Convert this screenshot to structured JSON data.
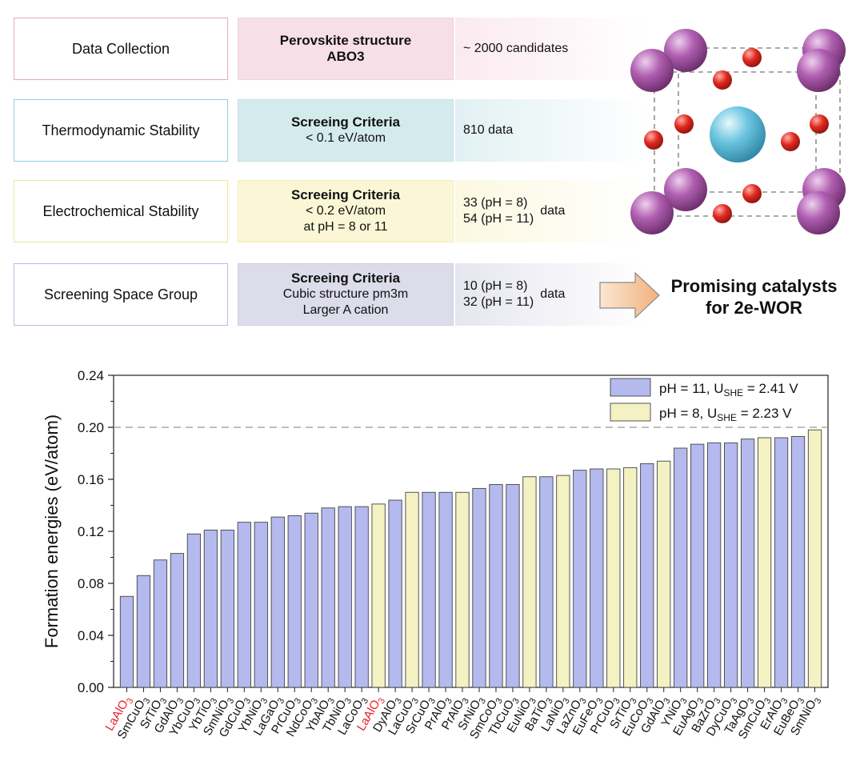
{
  "pipeline": {
    "rows": [
      {
        "step": "Data Collection",
        "criteria_title": "Perovskite structure",
        "criteria_lines": [
          "ABO3"
        ],
        "result_lines": [
          "~ 2000 candidates"
        ],
        "result_suffix": ""
      },
      {
        "step": "Thermodynamic Stability",
        "criteria_title": "Screeing Criteria",
        "criteria_lines": [
          "< 0.1 eV/atom"
        ],
        "result_lines": [
          "810 data"
        ],
        "result_suffix": ""
      },
      {
        "step": "Electrochemical Stability",
        "criteria_title": "Screeing Criteria",
        "criteria_lines": [
          "< 0.2 eV/atom",
          "at pH = 8 or 11"
        ],
        "result_lines": [
          "33 (pH = 8)",
          "54 (pH = 11)"
        ],
        "result_suffix": "data"
      },
      {
        "step": "Screening Space Group",
        "criteria_title": "Screeing Criteria",
        "criteria_lines": [
          "Cubic structure pm3m",
          "Larger A cation"
        ],
        "result_lines": [
          "10 (pH = 8)",
          "32 (pH = 11)"
        ],
        "result_suffix": "data"
      }
    ],
    "outcome_line1": "Promising catalysts",
    "outcome_line2": "for 2e-WOR"
  },
  "colors": {
    "ph11": "#b4b9ee",
    "ph8": "#f4f1c2",
    "highlight_label": "#e8222a",
    "a_site": "#b05fb0",
    "b_site": "#6cc5e0",
    "oxygen": "#e0281e"
  },
  "chart_data": {
    "type": "bar",
    "ylabel": "Formation energies (eV/atom)",
    "ylim": [
      0.0,
      0.24
    ],
    "yticks": [
      "0.00",
      "0.04",
      "0.08",
      "0.12",
      "0.16",
      "0.20",
      "0.24"
    ],
    "reference_line": 0.2,
    "legend": [
      {
        "series": "pH11",
        "label_main": "pH = 11, U",
        "label_sub": "SHE",
        "label_tail": " = 2.41 V"
      },
      {
        "series": "pH8",
        "label_main": "pH = 8, U",
        "label_sub": "SHE",
        "label_tail": " = 2.23 V"
      }
    ],
    "bars": [
      {
        "base": "LaAlO",
        "sub": "3",
        "value": 0.07,
        "series": "pH11",
        "highlight": true
      },
      {
        "base": "SmCuO",
        "sub": "3",
        "value": 0.086,
        "series": "pH11",
        "highlight": false
      },
      {
        "base": "SrTiO",
        "sub": "3",
        "value": 0.098,
        "series": "pH11",
        "highlight": false
      },
      {
        "base": "GdAlO",
        "sub": "3",
        "value": 0.103,
        "series": "pH11",
        "highlight": false
      },
      {
        "base": "YbCuO",
        "sub": "3",
        "value": 0.118,
        "series": "pH11",
        "highlight": false
      },
      {
        "base": "YbTiO",
        "sub": "3",
        "value": 0.121,
        "series": "pH11",
        "highlight": false
      },
      {
        "base": "SmNiO",
        "sub": "3",
        "value": 0.121,
        "series": "pH11",
        "highlight": false
      },
      {
        "base": "GdCuO",
        "sub": "3",
        "value": 0.127,
        "series": "pH11",
        "highlight": false
      },
      {
        "base": "YbNiO",
        "sub": "3",
        "value": 0.127,
        "series": "pH11",
        "highlight": false
      },
      {
        "base": "LaGaO",
        "sub": "3",
        "value": 0.131,
        "series": "pH11",
        "highlight": false
      },
      {
        "base": "PrCuO",
        "sub": "3",
        "value": 0.132,
        "series": "pH11",
        "highlight": false
      },
      {
        "base": "NdCoO",
        "sub": "3",
        "value": 0.134,
        "series": "pH11",
        "highlight": false
      },
      {
        "base": "YbAlO",
        "sub": "3",
        "value": 0.138,
        "series": "pH11",
        "highlight": false
      },
      {
        "base": "TbNiO",
        "sub": "3",
        "value": 0.139,
        "series": "pH11",
        "highlight": false
      },
      {
        "base": "LaCoO",
        "sub": "3",
        "value": 0.139,
        "series": "pH11",
        "highlight": false
      },
      {
        "base": "LaAlO",
        "sub": "3",
        "value": 0.141,
        "series": "pH8",
        "highlight": true
      },
      {
        "base": "DyAlO",
        "sub": "3",
        "value": 0.144,
        "series": "pH11",
        "highlight": false
      },
      {
        "base": "LaCuO",
        "sub": "3",
        "value": 0.15,
        "series": "pH8",
        "highlight": false
      },
      {
        "base": "SrCuO",
        "sub": "3",
        "value": 0.15,
        "series": "pH11",
        "highlight": false
      },
      {
        "base": "PrAlO",
        "sub": "3",
        "value": 0.15,
        "series": "pH11",
        "highlight": false
      },
      {
        "base": "PrAlO",
        "sub": "3",
        "value": 0.15,
        "series": "pH8",
        "highlight": false
      },
      {
        "base": "SrNiO",
        "sub": "3",
        "value": 0.153,
        "series": "pH11",
        "highlight": false
      },
      {
        "base": "SmCoO",
        "sub": "3",
        "value": 0.156,
        "series": "pH11",
        "highlight": false
      },
      {
        "base": "TbCuO",
        "sub": "3",
        "value": 0.156,
        "series": "pH11",
        "highlight": false
      },
      {
        "base": "EuNiO",
        "sub": "3",
        "value": 0.162,
        "series": "pH8",
        "highlight": false
      },
      {
        "base": "BaTiO",
        "sub": "3",
        "value": 0.162,
        "series": "pH11",
        "highlight": false
      },
      {
        "base": "LaNiO",
        "sub": "3",
        "value": 0.163,
        "series": "pH8",
        "highlight": false
      },
      {
        "base": "LaZnO",
        "sub": "3",
        "value": 0.167,
        "series": "pH11",
        "highlight": false
      },
      {
        "base": "EuFeO",
        "sub": "3",
        "value": 0.168,
        "series": "pH11",
        "highlight": false
      },
      {
        "base": "PrCuO",
        "sub": "3",
        "value": 0.168,
        "series": "pH8",
        "highlight": false
      },
      {
        "base": "SrTiO",
        "sub": "3",
        "value": 0.169,
        "series": "pH8",
        "highlight": false
      },
      {
        "base": "EuCoO",
        "sub": "3",
        "value": 0.172,
        "series": "pH11",
        "highlight": false
      },
      {
        "base": "GdAlO",
        "sub": "3",
        "value": 0.174,
        "series": "pH8",
        "highlight": false
      },
      {
        "base": "YNiO",
        "sub": "3",
        "value": 0.184,
        "series": "pH11",
        "highlight": false
      },
      {
        "base": "EuAgO",
        "sub": "3",
        "value": 0.187,
        "series": "pH11",
        "highlight": false
      },
      {
        "base": "BaZrO",
        "sub": "3",
        "value": 0.188,
        "series": "pH11",
        "highlight": false
      },
      {
        "base": "DyCuO",
        "sub": "3",
        "value": 0.188,
        "series": "pH11",
        "highlight": false
      },
      {
        "base": "TaAgO",
        "sub": "3",
        "value": 0.191,
        "series": "pH11",
        "highlight": false
      },
      {
        "base": "SmCuO",
        "sub": "3",
        "value": 0.192,
        "series": "pH8",
        "highlight": false
      },
      {
        "base": "ErAlO",
        "sub": "3",
        "value": 0.192,
        "series": "pH11",
        "highlight": false
      },
      {
        "base": "EuBeO",
        "sub": "3",
        "value": 0.193,
        "series": "pH11",
        "highlight": false
      },
      {
        "base": "SmNiO",
        "sub": "3",
        "value": 0.198,
        "series": "pH8",
        "highlight": false
      }
    ]
  }
}
